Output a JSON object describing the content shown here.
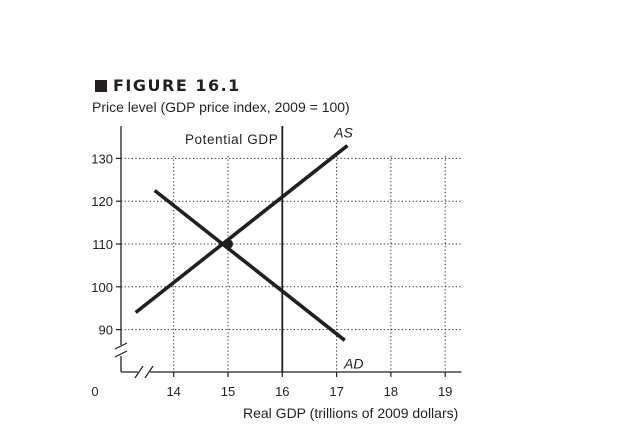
{
  "figure_label": "FIGURE 16.1",
  "colors": {
    "ink": "#231f20",
    "background": "#ffffff"
  },
  "chart_data": {
    "type": "line",
    "title": "",
    "xlabel": "Real GDP (trillions of 2009 dollars)",
    "ylabel": "Price level (GDP price index, 2009 = 100)",
    "origin_label": "0",
    "xlim": [
      13,
      19.3
    ],
    "ylim": [
      80,
      135
    ],
    "xticks": [
      14,
      15,
      16,
      17,
      18,
      19
    ],
    "yticks": [
      90,
      100,
      110,
      120,
      130
    ],
    "axis_breaks": true,
    "grid": "dotted",
    "series": [
      {
        "name": "AS",
        "points": [
          [
            13.3,
            94
          ],
          [
            17.2,
            133
          ]
        ]
      },
      {
        "name": "AD",
        "points": [
          [
            13.65,
            122.5
          ],
          [
            17.15,
            87.5
          ]
        ]
      }
    ],
    "vertical_line": {
      "name": "Potential GDP",
      "x": 16
    },
    "equilibrium": {
      "x": 15,
      "y": 110
    }
  }
}
